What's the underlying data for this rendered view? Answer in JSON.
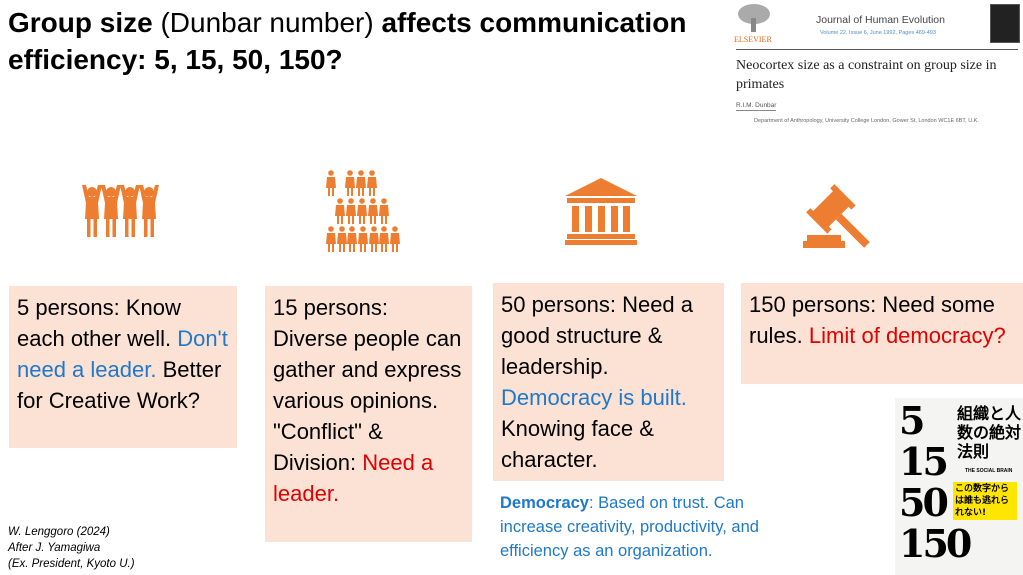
{
  "title": {
    "bold1": "Group size",
    "normal": " (Dunbar number) ",
    "bold2": "affects communication efficiency: 5, 15, 50, 150?"
  },
  "paper": {
    "publisher": "ELSEVIER",
    "journal": "Journal of Human Evolution",
    "volume": "Volume 22, Issue 6, June 1992, Pages 469-493",
    "article_title": "Neocortex size as a constraint on group size in primates",
    "author": "R.I.M. Dunbar",
    "affiliation": "Department of Anthropology, University College London, Gower St, London WC1E 6BT, U.K."
  },
  "colors": {
    "accent": "#ED7D31",
    "box": "#FBE2D5",
    "blue": "#1F78C8",
    "red": "#E00000"
  },
  "icons": [
    "people-raising-hands-icon",
    "people-pyramid-icon",
    "institution-building-icon",
    "gavel-icon"
  ],
  "boxes": [
    {
      "s1": "5 persons: Know each other well. ",
      "s2": "Don't need a leader.",
      "s3": " Better for Creative Work?"
    },
    {
      "s1": "15 persons: Diverse people can gather and express various opinions. \"Conflict\" & Division: ",
      "s2": "Need a leader."
    },
    {
      "s1": "50 persons: Need a good structure & leadership. ",
      "s2": "Democracy is built.",
      "s3": " Knowing face & character."
    },
    {
      "s1": "150 persons: Need some rules. ",
      "s2": "Limit of democracy?"
    }
  ],
  "note": {
    "term": "Democracy",
    "text": ": Based on trust. Can increase creativity, productivity, and efficiency as an organization."
  },
  "credit": {
    "line1": "W. Lenggoro (2024)",
    "line2": "After J. Yamagiwa",
    "line3": "(Ex. President, Kyoto U.)"
  },
  "book": {
    "numbers": "5 15 50 150",
    "title_jp": "組織と人数の絶対法則",
    "subtitle": "THE SOCIAL BRAIN",
    "band": "この数字からは誰も逃れられない!"
  }
}
